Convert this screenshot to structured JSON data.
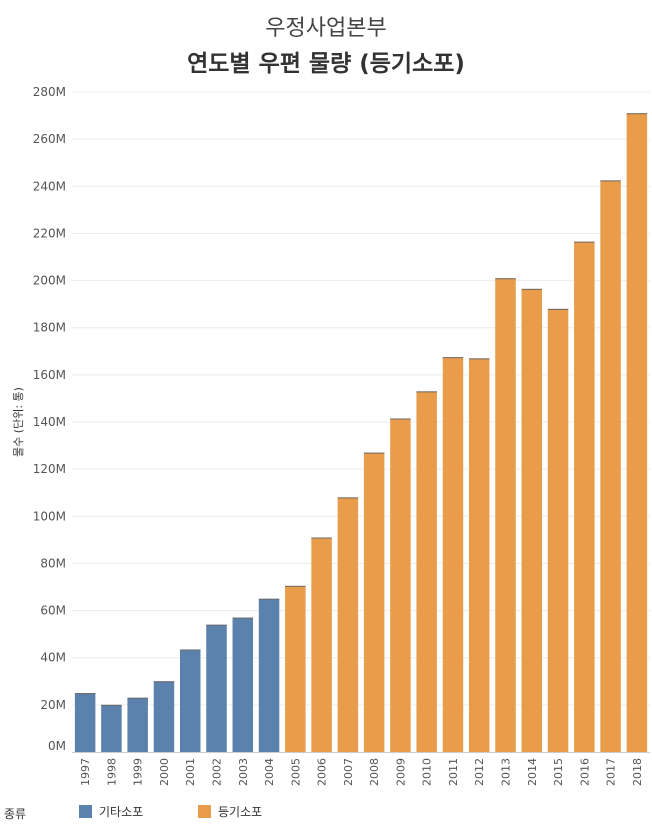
{
  "chart_data": {
    "type": "bar",
    "title": "연도별 우편 물량 (등기소포)",
    "subtitle": "우정사업본부",
    "ylabel": "물수 (단위: 통)",
    "xlabel": "",
    "ylim": [
      0,
      280
    ],
    "y_ticks": [
      "0M",
      "20M",
      "40M",
      "60M",
      "80M",
      "100M",
      "120M",
      "140M",
      "160M",
      "180M",
      "200M",
      "220M",
      "240M",
      "260M",
      "280M"
    ],
    "categories": [
      "1997",
      "1998",
      "1999",
      "2000",
      "2001",
      "2002",
      "2003",
      "2004",
      "2005",
      "2006",
      "2007",
      "2008",
      "2009",
      "2010",
      "2011",
      "2012",
      "2013",
      "2014",
      "2015",
      "2016",
      "2017",
      "2018"
    ],
    "values": [
      25,
      20,
      23,
      30,
      43.5,
      54,
      57,
      65,
      70.5,
      91,
      108,
      127,
      141.5,
      153,
      167.5,
      167,
      201,
      196.5,
      188,
      216.5,
      242.5,
      271
    ],
    "colors": [
      "#5b81ad",
      "#5b81ad",
      "#5b81ad",
      "#5b81ad",
      "#5b81ad",
      "#5b81ad",
      "#5b81ad",
      "#5b81ad",
      "#e99c4a",
      "#e99c4a",
      "#e99c4a",
      "#e99c4a",
      "#e99c4a",
      "#e99c4a",
      "#e99c4a",
      "#e99c4a",
      "#e99c4a",
      "#e99c4a",
      "#e99c4a",
      "#e99c4a",
      "#e99c4a",
      "#e99c4a"
    ],
    "legend_title": "종류",
    "legend": [
      {
        "name": "기타소포",
        "color": "#5b81ad"
      },
      {
        "name": "등기소포",
        "color": "#e99c4a"
      }
    ],
    "legend_position": "bottom-left",
    "grid": true
  }
}
